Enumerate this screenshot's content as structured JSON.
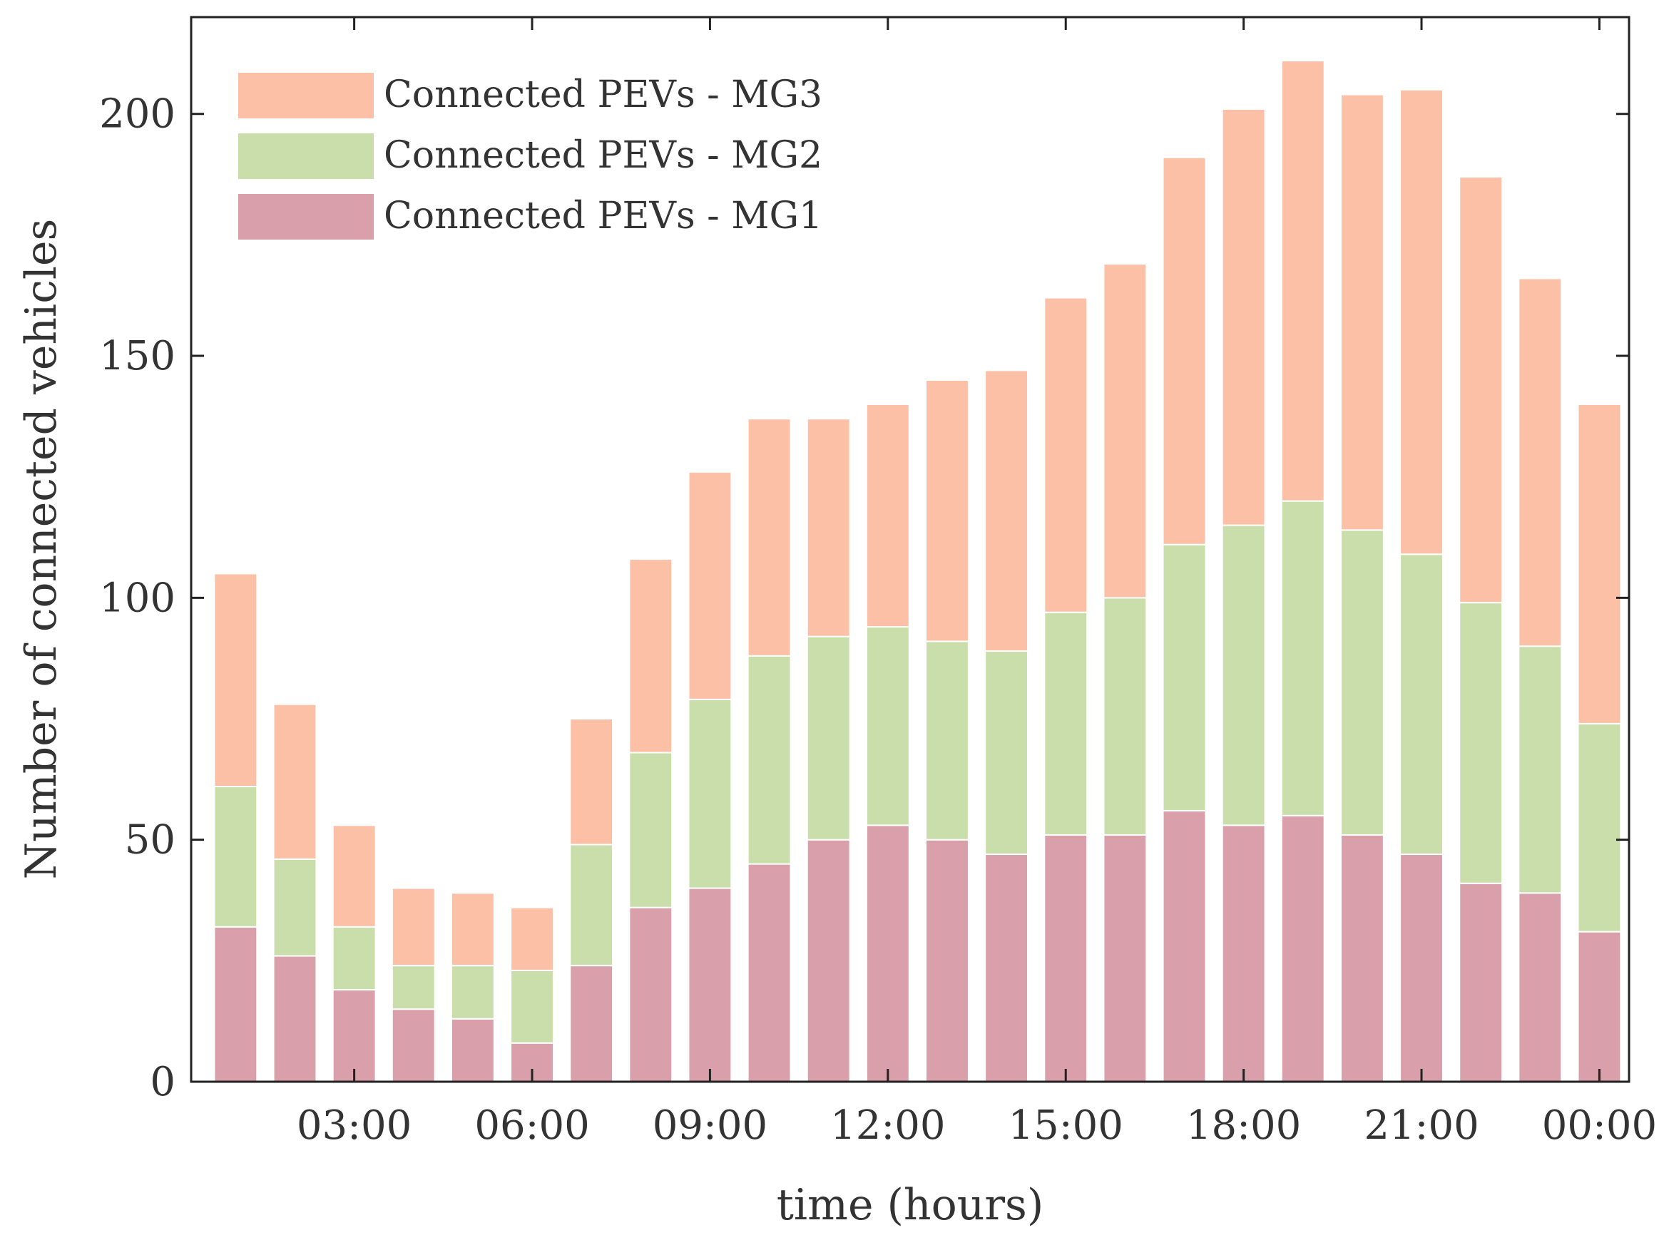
{
  "chart_data": {
    "type": "bar",
    "stacked": true,
    "title": "",
    "xlabel": "time (hours)",
    "ylabel": "Number of connected vehicles",
    "ylim": [
      0,
      220
    ],
    "yticks": [
      0,
      50,
      100,
      150,
      200
    ],
    "x": [
      1,
      2,
      3,
      4,
      5,
      6,
      7,
      8,
      9,
      10,
      11,
      12,
      13,
      14,
      15,
      16,
      17,
      18,
      19,
      20,
      21,
      22,
      23,
      24
    ],
    "xtick_positions": [
      3,
      6,
      9,
      12,
      15,
      18,
      21,
      24
    ],
    "xtick_labels": [
      "03:00",
      "06:00",
      "09:00",
      "12:00",
      "15:00",
      "18:00",
      "21:00",
      "00:00"
    ],
    "legend_position": "top-left",
    "grid": false,
    "series": [
      {
        "name": "Connected PEVs - MG1",
        "color": "#d9a0ab",
        "values": [
          32,
          26,
          19,
          15,
          13,
          8,
          24,
          36,
          40,
          45,
          50,
          53,
          50,
          47,
          51,
          51,
          56,
          53,
          55,
          51,
          47,
          41,
          39,
          31
        ]
      },
      {
        "name": "Connected PEVs - MG2",
        "color": "#cadeac",
        "values": [
          29,
          20,
          13,
          9,
          11,
          15,
          25,
          32,
          39,
          43,
          42,
          41,
          41,
          42,
          46,
          49,
          55,
          62,
          65,
          63,
          62,
          58,
          51,
          43
        ]
      },
      {
        "name": "Connected PEVs - MG3",
        "color": "#fcc0a6",
        "values": [
          44,
          32,
          21,
          16,
          15,
          13,
          26,
          40,
          47,
          49,
          45,
          46,
          54,
          58,
          65,
          69,
          80,
          86,
          91,
          90,
          96,
          88,
          76,
          66
        ]
      }
    ]
  }
}
